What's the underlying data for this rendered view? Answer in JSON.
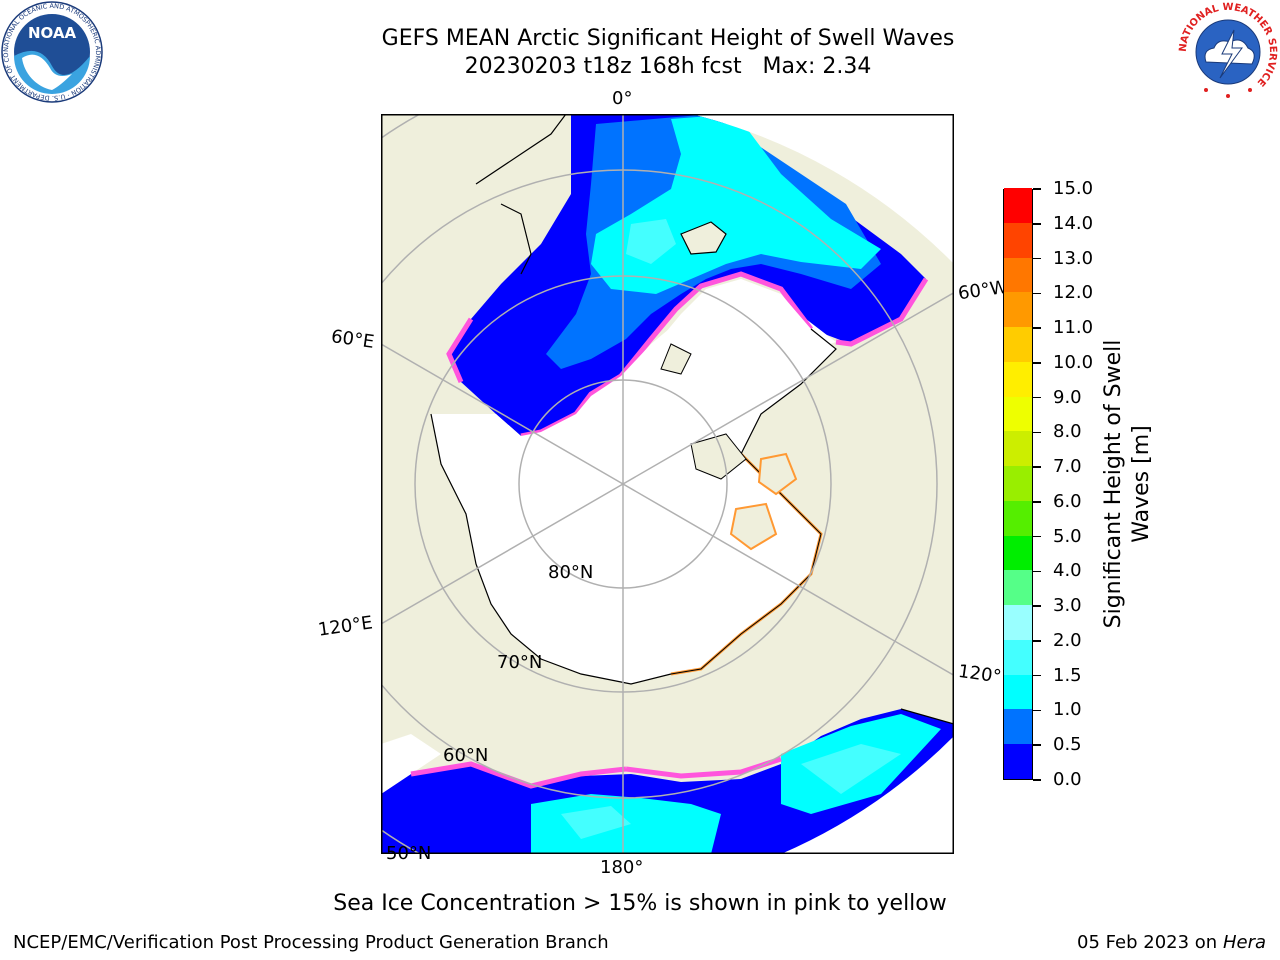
{
  "title_line1": "GEFS MEAN Arctic Significant Height of Swell Waves",
  "title_line2": "20230203 t18z 168h fcst   Max: 2.34",
  "noaa_logo": {
    "text": "NOAA",
    "ring_text": "NATIONAL OCEANIC AND ATMOSPHERIC ADMINISTRATION · U.S. DEPARTMENT OF COMMERCE"
  },
  "nws_logo": {
    "ring_text": "NATIONAL WEATHER SERVICE"
  },
  "map": {
    "projection": "north-polar-stereographic",
    "land_color": "#efefdc",
    "ocean_color": "#ffffff",
    "grid_color": "#b0b0b0",
    "meridian_labels": [
      "0°",
      "60°E",
      "120°E",
      "180°",
      "120°W",
      "60°W"
    ],
    "parallel_labels": [
      "80°N",
      "70°N",
      "60°N",
      "50°N"
    ]
  },
  "colorbar": {
    "label": "Significant Height of Swell Waves [m]",
    "ticks": [
      "0.0",
      "0.5",
      "1.0",
      "1.5",
      "2.0",
      "3.0",
      "4.0",
      "5.0",
      "6.0",
      "7.0",
      "8.0",
      "9.0",
      "10.0",
      "11.0",
      "12.0",
      "13.0",
      "14.0",
      "15.0"
    ],
    "colors": [
      "#0000ff",
      "#0073ff",
      "#00ffff",
      "#44ffff",
      "#99ffff",
      "#55ff88",
      "#00ee00",
      "#55ee00",
      "#99ee00",
      "#ccee00",
      "#eeff00",
      "#ffee00",
      "#ffcc00",
      "#ff9900",
      "#ff7700",
      "#ff4400",
      "#ff0000"
    ]
  },
  "subtitle": "Sea Ice Concentration > 15% is shown in pink to yellow",
  "footer_left": "NCEP/EMC/Verification Post Processing Product Generation Branch",
  "footer_date": "05 Feb 2023 on",
  "footer_host": "Hera"
}
